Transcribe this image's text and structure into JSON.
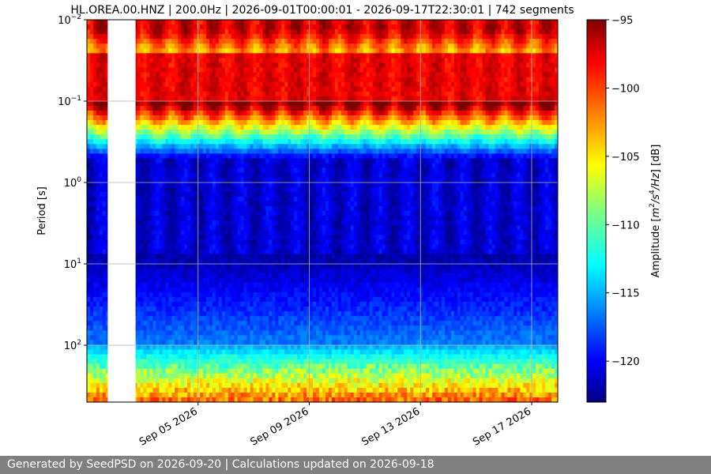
{
  "chart_data": {
    "type": "heatmap",
    "title": "HL.OREA.00.HNZ | 200.0Hz | 2026-09-01T00:00:01 - 2026-09-17T22:30:01 | 742 segments",
    "ylabel": "Period [s]",
    "y_scale": "log",
    "y_inverted": true,
    "ylim": [
      0.01,
      500
    ],
    "y_ticks": [
      {
        "value": 0.01,
        "base": "10",
        "exp": "−2"
      },
      {
        "value": 0.1,
        "base": "10",
        "exp": "−1"
      },
      {
        "value": 1,
        "base": "10",
        "exp": "0"
      },
      {
        "value": 10,
        "base": "10",
        "exp": "1"
      },
      {
        "value": 100,
        "base": "10",
        "exp": "2"
      }
    ],
    "xlim": [
      "2026-09-01T00:00:01",
      "2026-09-17T22:30:01"
    ],
    "x_ticks": [
      "Sep 05 2026",
      "Sep 09 2026",
      "Sep 13 2026",
      "Sep 17 2026"
    ],
    "x_tick_dates": [
      "2026-09-05",
      "2026-09-09",
      "2026-09-13",
      "2026-09-17"
    ],
    "gap": [
      "2026-09-01T18:00:00",
      "2026-09-02T18:00:00"
    ],
    "colormap": "jet",
    "colorbar": {
      "label_parts": {
        "pre": "Amplitude [",
        "m": "m",
        "e1": "2",
        "slash": "/s",
        "e2": "4",
        "hz": "/Hz",
        "post": "] [dB]"
      },
      "range": [
        -123,
        -95
      ],
      "ticks": [
        "−95",
        "−100",
        "−105",
        "−110",
        "−115",
        "−120"
      ],
      "tick_values": [
        -95,
        -100,
        -105,
        -110,
        -115,
        -120
      ]
    },
    "grid": true,
    "segments": 742
  },
  "footer": {
    "text": "Generated by SeedPSD on 2026-09-20 | Calculations updated on 2026-09-18"
  }
}
